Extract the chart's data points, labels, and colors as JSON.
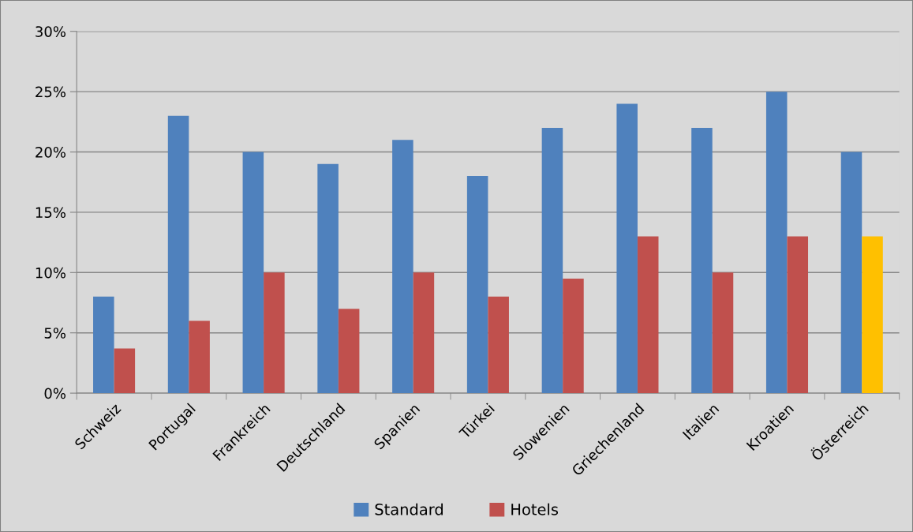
{
  "chart_data": {
    "type": "bar",
    "categories": [
      "Schweiz",
      "Portugal",
      "Frankreich",
      "Deutschland",
      "Spanien",
      "Türkei",
      "Slowenien",
      "Griechenland",
      "Italien",
      "Kroatien",
      "Österreich"
    ],
    "series": [
      {
        "name": "Standard",
        "color": "#4f81bd",
        "values": [
          8,
          23,
          20,
          19,
          21,
          18,
          22,
          24,
          22,
          25,
          20
        ]
      },
      {
        "name": "Hotels",
        "color": "#c0504d",
        "colors": [
          "#c0504d",
          "#c0504d",
          "#c0504d",
          "#c0504d",
          "#c0504d",
          "#c0504d",
          "#c0504d",
          "#c0504d",
          "#c0504d",
          "#c0504d",
          "#ffc000"
        ],
        "values": [
          3.7,
          6,
          10,
          7,
          10,
          8,
          9.5,
          13,
          10,
          13,
          13
        ]
      }
    ],
    "ylim": [
      0,
      30
    ],
    "yticks": [
      {
        "value": 0,
        "label": "0%"
      },
      {
        "value": 5,
        "label": "5%"
      },
      {
        "value": 10,
        "label": "10%"
      },
      {
        "value": 15,
        "label": "15%"
      },
      {
        "value": 20,
        "label": "20%"
      },
      {
        "value": 25,
        "label": "25%"
      },
      {
        "value": 30,
        "label": "30%"
      }
    ],
    "grid": "y",
    "legend": "bottom"
  }
}
